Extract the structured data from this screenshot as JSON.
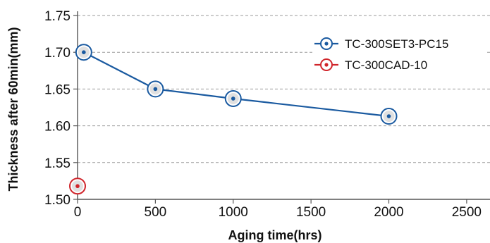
{
  "chart_data": {
    "type": "line",
    "xlabel": "Aging time(hrs)",
    "ylabel": "Thickness after 60min(mm)",
    "xlim": [
      0,
      2650
    ],
    "ylim": [
      1.5,
      1.75
    ],
    "x_ticks": [
      0,
      500,
      1000,
      1500,
      2000,
      2500
    ],
    "x_tick_labels": [
      "0",
      "500",
      "1000",
      "1500",
      "2000",
      "2500"
    ],
    "y_ticks": [
      1.5,
      1.55,
      1.6,
      1.65,
      1.7,
      1.75
    ],
    "y_tick_labels": [
      "1.50",
      "1.55",
      "1.60",
      "1.65",
      "1.70",
      "1.75"
    ],
    "grid": "horizontal dashed",
    "legend_position": "top-right",
    "series": [
      {
        "name": "TC-300SET3-PC15",
        "color": "#1a5aa0",
        "x": [
          40,
          500,
          1000,
          2000
        ],
        "y": [
          1.7,
          1.65,
          1.637,
          1.613
        ],
        "line": true
      },
      {
        "name": "TC-300CAD-10",
        "color": "#d0252b",
        "x": [
          0
        ],
        "y": [
          1.518
        ],
        "line": false
      }
    ]
  }
}
